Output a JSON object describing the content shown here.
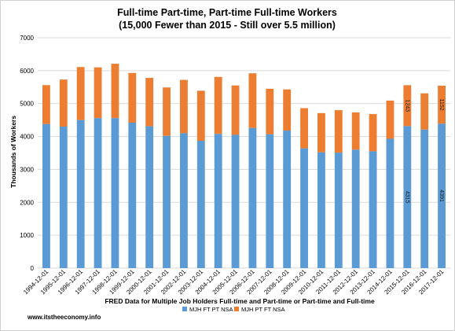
{
  "chart_data": {
    "type": "bar",
    "stacked": true,
    "title": "Full-time Part-time, Part-time Full-time Workers",
    "subtitle": "(15,000 Fewer than 2015 - Still over 5.5 million)",
    "xlabel": "FRED Data for Multiple Job Holders Full-time and Part-time or Part-time and Full-time",
    "ylabel": "Thousands of Workers",
    "ylim": [
      0,
      7000
    ],
    "yticks": [
      0,
      1000,
      2000,
      3000,
      4000,
      5000,
      6000,
      7000
    ],
    "grid": true,
    "legend_position": "bottom",
    "categories": [
      "1994-12-01",
      "1995-12-01",
      "1996-12-01",
      "1997-12-01",
      "1998-12-01",
      "1999-12-01",
      "2000-12-01",
      "2001-12-01",
      "2002-12-01",
      "2003-12-01",
      "2004-12-01",
      "2005-12-01",
      "2006-12-01",
      "2007-12-01",
      "2008-12-01",
      "2009-12-01",
      "2010-12-01",
      "2011-12-01",
      "2012-12-01",
      "2013-12-01",
      "2014-12-01",
      "2015-12-01",
      "2016-12-01",
      "2017-12-01"
    ],
    "series": [
      {
        "name": "MJH FT PT NSA",
        "color": "#5b9bd5",
        "values": [
          4380,
          4300,
          4500,
          4560,
          4560,
          4420,
          4310,
          4020,
          4100,
          3870,
          4080,
          4050,
          4260,
          4070,
          4180,
          3640,
          3520,
          3510,
          3600,
          3550,
          3930,
          4315,
          4210,
          4391
        ]
      },
      {
        "name": "MJH PT FT NSA",
        "color": "#ed7d31",
        "values": [
          1180,
          1430,
          1610,
          1540,
          1650,
          1510,
          1470,
          1470,
          1620,
          1520,
          1730,
          1500,
          1660,
          1380,
          1250,
          1220,
          1190,
          1290,
          1130,
          1130,
          1160,
          1243,
          1100,
          1152
        ]
      }
    ],
    "data_labels": [
      {
        "series": 0,
        "index": 21,
        "text": "4315"
      },
      {
        "series": 1,
        "index": 21,
        "text": "1243"
      },
      {
        "series": 0,
        "index": 23,
        "text": "4391"
      },
      {
        "series": 1,
        "index": 23,
        "text": "1152"
      }
    ]
  },
  "footer": {
    "source": "www.itstheeconomy.info"
  },
  "colors": {
    "series_1": "#5b9bd5",
    "series_2": "#ed7d31"
  }
}
